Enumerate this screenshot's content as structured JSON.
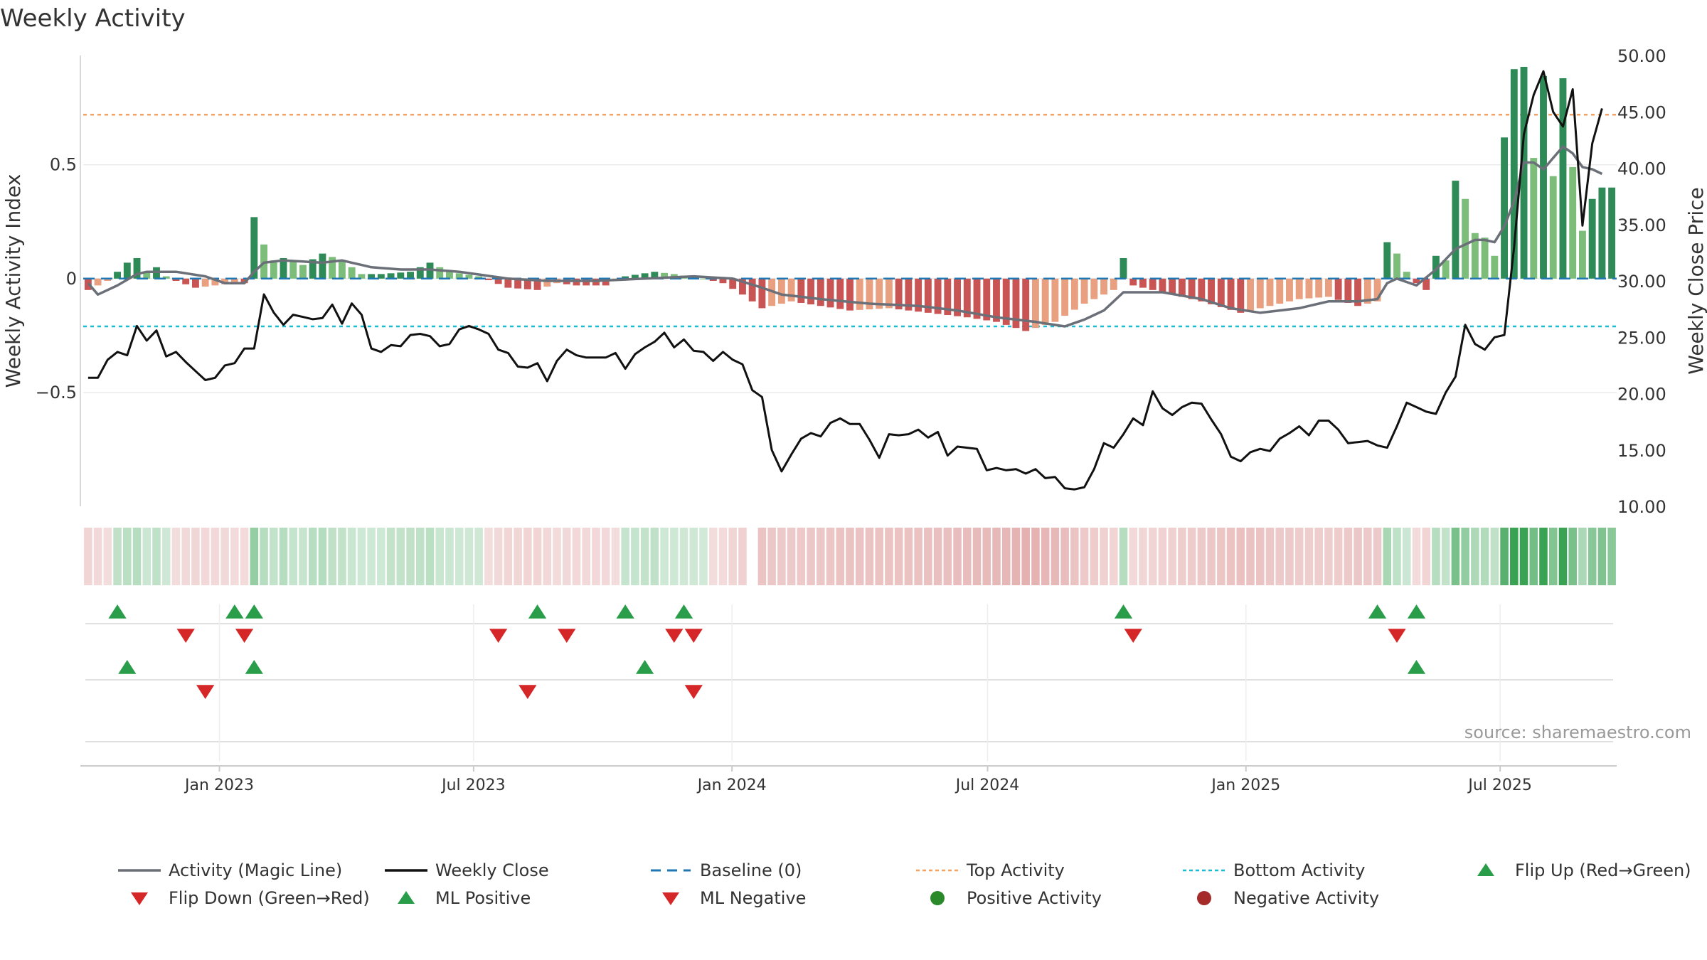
{
  "chart_data": {
    "type": "bar",
    "title": "Weekly Activity",
    "ylabel_left": "Weekly Activity Index",
    "ylabel_right": "Weekly Close Price",
    "ylim_left": [
      -1.0,
      0.98
    ],
    "ylim_right": [
      10.0,
      50.0
    ],
    "yticks_left": [
      0.5,
      0,
      -0.5
    ],
    "ytick_labels_left": [
      "0.5",
      "0",
      "−0.5"
    ],
    "yticks_right": [
      50,
      45,
      40,
      35,
      30,
      25,
      20,
      15,
      10
    ],
    "ytick_labels_right": [
      "50.00",
      "45.00",
      "40.00",
      "35.00",
      "30.00",
      "25.00",
      "20.00",
      "15.00",
      "10.00"
    ],
    "x_start": "2022-09-26",
    "x_end": "2025-09-22",
    "week_count": 157,
    "xticks": [
      {
        "date": "2023-01-01",
        "label": "Jan 2023"
      },
      {
        "date": "2023-07-01",
        "label": "Jul 2023"
      },
      {
        "date": "2024-01-01",
        "label": "Jan 2024"
      },
      {
        "date": "2024-07-01",
        "label": "Jul 2024"
      },
      {
        "date": "2025-01-01",
        "label": "Jan 2025"
      },
      {
        "date": "2025-07-01",
        "label": "Jul 2025"
      }
    ],
    "reference_lines": {
      "baseline": 0,
      "top_activity": 0.72,
      "bottom_activity": -0.21
    },
    "activity_keys": [
      {
        "w": 0,
        "v": -0.05
      },
      {
        "w": 2,
        "v": -0.01
      },
      {
        "w": 4,
        "v": 0.07
      },
      {
        "w": 5,
        "v": 0.09
      },
      {
        "w": 6,
        "v": 0.03
      },
      {
        "w": 7,
        "v": 0.05
      },
      {
        "w": 8,
        "v": 0.01
      },
      {
        "w": 9,
        "v": -0.01
      },
      {
        "w": 11,
        "v": -0.04
      },
      {
        "w": 13,
        "v": -0.03
      },
      {
        "w": 15,
        "v": -0.02
      },
      {
        "w": 16,
        "v": -0.02
      },
      {
        "w": 17,
        "v": 0.27
      },
      {
        "w": 18,
        "v": 0.15
      },
      {
        "w": 19,
        "v": 0.08
      },
      {
        "w": 20,
        "v": 0.09
      },
      {
        "w": 22,
        "v": 0.06
      },
      {
        "w": 24,
        "v": 0.11
      },
      {
        "w": 26,
        "v": 0.08
      },
      {
        "w": 28,
        "v": 0.02
      },
      {
        "w": 30,
        "v": 0.02
      },
      {
        "w": 33,
        "v": 0.03
      },
      {
        "w": 35,
        "v": 0.07
      },
      {
        "w": 37,
        "v": 0.03
      },
      {
        "w": 40,
        "v": 0.01
      },
      {
        "w": 43,
        "v": -0.04
      },
      {
        "w": 46,
        "v": -0.05
      },
      {
        "w": 48,
        "v": -0.02
      },
      {
        "w": 50,
        "v": -0.03
      },
      {
        "w": 53,
        "v": -0.03
      },
      {
        "w": 55,
        "v": 0.01
      },
      {
        "w": 58,
        "v": 0.03
      },
      {
        "w": 60,
        "v": 0.02
      },
      {
        "w": 63,
        "v": 0.0
      },
      {
        "w": 65,
        "v": -0.02
      },
      {
        "w": 67,
        "v": -0.07
      },
      {
        "w": 69,
        "v": -0.13
      },
      {
        "w": 72,
        "v": -0.1
      },
      {
        "w": 75,
        "v": -0.12
      },
      {
        "w": 78,
        "v": -0.14
      },
      {
        "w": 82,
        "v": -0.13
      },
      {
        "w": 86,
        "v": -0.15
      },
      {
        "w": 90,
        "v": -0.17
      },
      {
        "w": 93,
        "v": -0.19
      },
      {
        "w": 96,
        "v": -0.23
      },
      {
        "w": 99,
        "v": -0.19
      },
      {
        "w": 102,
        "v": -0.11
      },
      {
        "w": 105,
        "v": -0.05
      },
      {
        "w": 106,
        "v": 0.09
      },
      {
        "w": 107,
        "v": -0.03
      },
      {
        "w": 110,
        "v": -0.06
      },
      {
        "w": 114,
        "v": -0.1
      },
      {
        "w": 118,
        "v": -0.15
      },
      {
        "w": 121,
        "v": -0.12
      },
      {
        "w": 124,
        "v": -0.09
      },
      {
        "w": 127,
        "v": -0.08
      },
      {
        "w": 130,
        "v": -0.12
      },
      {
        "w": 132,
        "v": -0.1
      },
      {
        "w": 133,
        "v": 0.16
      },
      {
        "w": 134,
        "v": 0.11
      },
      {
        "w": 135,
        "v": 0.03
      },
      {
        "w": 136,
        "v": -0.02
      },
      {
        "w": 137,
        "v": -0.05
      },
      {
        "w": 138,
        "v": 0.1
      },
      {
        "w": 139,
        "v": 0.08
      },
      {
        "w": 140,
        "v": 0.43
      },
      {
        "w": 141,
        "v": 0.35
      },
      {
        "w": 142,
        "v": 0.2
      },
      {
        "w": 143,
        "v": 0.18
      },
      {
        "w": 144,
        "v": 0.1
      },
      {
        "w": 145,
        "v": 0.62
      },
      {
        "w": 146,
        "v": 0.92
      },
      {
        "w": 147,
        "v": 0.93
      },
      {
        "w": 148,
        "v": 0.53
      },
      {
        "w": 149,
        "v": 0.89
      },
      {
        "w": 150,
        "v": 0.45
      },
      {
        "w": 151,
        "v": 0.88
      },
      {
        "w": 152,
        "v": 0.49
      },
      {
        "w": 153,
        "v": 0.21
      },
      {
        "w": 154,
        "v": 0.35
      },
      {
        "w": 155,
        "v": 0.4
      },
      {
        "w": 156,
        "v": 0.4
      }
    ],
    "close_keys": [
      {
        "w": 0,
        "v": 21.4
      },
      {
        "w": 1,
        "v": 21.4
      },
      {
        "w": 2,
        "v": 23.0
      },
      {
        "w": 3,
        "v": 23.7
      },
      {
        "w": 4,
        "v": 23.4
      },
      {
        "w": 5,
        "v": 26.0
      },
      {
        "w": 6,
        "v": 24.7
      },
      {
        "w": 7,
        "v": 25.6
      },
      {
        "w": 8,
        "v": 23.3
      },
      {
        "w": 9,
        "v": 23.7
      },
      {
        "w": 10,
        "v": 22.8
      },
      {
        "w": 11,
        "v": 22.0
      },
      {
        "w": 12,
        "v": 21.2
      },
      {
        "w": 13,
        "v": 21.4
      },
      {
        "w": 14,
        "v": 22.5
      },
      {
        "w": 15,
        "v": 22.7
      },
      {
        "w": 16,
        "v": 24.0
      },
      {
        "w": 17,
        "v": 24.0
      },
      {
        "w": 18,
        "v": 28.8
      },
      {
        "w": 19,
        "v": 27.2
      },
      {
        "w": 20,
        "v": 26.1
      },
      {
        "w": 21,
        "v": 27.0
      },
      {
        "w": 22,
        "v": 26.8
      },
      {
        "w": 23,
        "v": 26.6
      },
      {
        "w": 24,
        "v": 26.7
      },
      {
        "w": 25,
        "v": 27.9
      },
      {
        "w": 26,
        "v": 26.2
      },
      {
        "w": 27,
        "v": 28.0
      },
      {
        "w": 28,
        "v": 27.0
      },
      {
        "w": 29,
        "v": 24.0
      },
      {
        "w": 30,
        "v": 23.7
      },
      {
        "w": 31,
        "v": 24.3
      },
      {
        "w": 32,
        "v": 24.2
      },
      {
        "w": 33,
        "v": 25.2
      },
      {
        "w": 34,
        "v": 25.3
      },
      {
        "w": 35,
        "v": 25.1
      },
      {
        "w": 36,
        "v": 24.2
      },
      {
        "w": 37,
        "v": 24.4
      },
      {
        "w": 38,
        "v": 25.7
      },
      {
        "w": 39,
        "v": 26.0
      },
      {
        "w": 40,
        "v": 25.7
      },
      {
        "w": 41,
        "v": 25.3
      },
      {
        "w": 42,
        "v": 23.9
      },
      {
        "w": 43,
        "v": 23.6
      },
      {
        "w": 44,
        "v": 22.4
      },
      {
        "w": 45,
        "v": 22.3
      },
      {
        "w": 46,
        "v": 22.7
      },
      {
        "w": 47,
        "v": 21.1
      },
      {
        "w": 48,
        "v": 22.9
      },
      {
        "w": 49,
        "v": 23.9
      },
      {
        "w": 50,
        "v": 23.4
      },
      {
        "w": 51,
        "v": 23.2
      },
      {
        "w": 52,
        "v": 23.2
      },
      {
        "w": 53,
        "v": 23.2
      },
      {
        "w": 54,
        "v": 23.6
      },
      {
        "w": 55,
        "v": 22.2
      },
      {
        "w": 56,
        "v": 23.5
      },
      {
        "w": 57,
        "v": 24.1
      },
      {
        "w": 58,
        "v": 24.6
      },
      {
        "w": 59,
        "v": 25.4
      },
      {
        "w": 60,
        "v": 24.1
      },
      {
        "w": 61,
        "v": 24.8
      },
      {
        "w": 62,
        "v": 23.8
      },
      {
        "w": 63,
        "v": 23.7
      },
      {
        "w": 64,
        "v": 22.9
      },
      {
        "w": 65,
        "v": 23.7
      },
      {
        "w": 66,
        "v": 23.0
      },
      {
        "w": 67,
        "v": 22.6
      },
      {
        "w": 68,
        "v": 20.3
      },
      {
        "w": 69,
        "v": 19.7
      },
      {
        "w": 70,
        "v": 15.0
      },
      {
        "w": 71,
        "v": 13.1
      },
      {
        "w": 72,
        "v": 14.6
      },
      {
        "w": 73,
        "v": 16.0
      },
      {
        "w": 74,
        "v": 16.5
      },
      {
        "w": 75,
        "v": 16.2
      },
      {
        "w": 76,
        "v": 17.4
      },
      {
        "w": 77,
        "v": 17.8
      },
      {
        "w": 78,
        "v": 17.3
      },
      {
        "w": 79,
        "v": 17.3
      },
      {
        "w": 80,
        "v": 15.9
      },
      {
        "w": 81,
        "v": 14.3
      },
      {
        "w": 82,
        "v": 16.4
      },
      {
        "w": 83,
        "v": 16.3
      },
      {
        "w": 84,
        "v": 16.4
      },
      {
        "w": 85,
        "v": 16.8
      },
      {
        "w": 86,
        "v": 16.1
      },
      {
        "w": 87,
        "v": 16.6
      },
      {
        "w": 88,
        "v": 14.5
      },
      {
        "w": 89,
        "v": 15.3
      },
      {
        "w": 90,
        "v": 15.2
      },
      {
        "w": 91,
        "v": 15.1
      },
      {
        "w": 92,
        "v": 13.2
      },
      {
        "w": 93,
        "v": 13.4
      },
      {
        "w": 94,
        "v": 13.2
      },
      {
        "w": 95,
        "v": 13.3
      },
      {
        "w": 96,
        "v": 12.9
      },
      {
        "w": 97,
        "v": 13.3
      },
      {
        "w": 98,
        "v": 12.5
      },
      {
        "w": 99,
        "v": 12.6
      },
      {
        "w": 100,
        "v": 11.6
      },
      {
        "w": 101,
        "v": 11.5
      },
      {
        "w": 102,
        "v": 11.7
      },
      {
        "w": 103,
        "v": 13.3
      },
      {
        "w": 104,
        "v": 15.6
      },
      {
        "w": 105,
        "v": 15.2
      },
      {
        "w": 106,
        "v": 16.4
      },
      {
        "w": 107,
        "v": 17.8
      },
      {
        "w": 108,
        "v": 17.2
      },
      {
        "w": 109,
        "v": 20.2
      },
      {
        "w": 110,
        "v": 18.7
      },
      {
        "w": 111,
        "v": 18.1
      },
      {
        "w": 112,
        "v": 18.8
      },
      {
        "w": 113,
        "v": 19.2
      },
      {
        "w": 114,
        "v": 19.1
      },
      {
        "w": 115,
        "v": 17.7
      },
      {
        "w": 116,
        "v": 16.4
      },
      {
        "w": 117,
        "v": 14.4
      },
      {
        "w": 118,
        "v": 14.0
      },
      {
        "w": 119,
        "v": 14.8
      },
      {
        "w": 120,
        "v": 15.1
      },
      {
        "w": 121,
        "v": 14.9
      },
      {
        "w": 122,
        "v": 16.0
      },
      {
        "w": 123,
        "v": 16.5
      },
      {
        "w": 124,
        "v": 17.1
      },
      {
        "w": 125,
        "v": 16.3
      },
      {
        "w": 126,
        "v": 17.6
      },
      {
        "w": 127,
        "v": 17.6
      },
      {
        "w": 128,
        "v": 16.8
      },
      {
        "w": 129,
        "v": 15.6
      },
      {
        "w": 130,
        "v": 15.7
      },
      {
        "w": 131,
        "v": 15.8
      },
      {
        "w": 132,
        "v": 15.4
      },
      {
        "w": 133,
        "v": 15.2
      },
      {
        "w": 134,
        "v": 17.1
      },
      {
        "w": 135,
        "v": 19.2
      },
      {
        "w": 136,
        "v": 18.8
      },
      {
        "w": 137,
        "v": 18.4
      },
      {
        "w": 138,
        "v": 18.2
      },
      {
        "w": 139,
        "v": 20.1
      },
      {
        "w": 140,
        "v": 21.5
      },
      {
        "w": 141,
        "v": 26.1
      },
      {
        "w": 142,
        "v": 24.4
      },
      {
        "w": 143,
        "v": 23.9
      },
      {
        "w": 144,
        "v": 25.0
      },
      {
        "w": 145,
        "v": 25.2
      },
      {
        "w": 146,
        "v": 33.0
      },
      {
        "w": 147,
        "v": 43.0
      },
      {
        "w": 148,
        "v": 46.5
      },
      {
        "w": 149,
        "v": 48.6
      },
      {
        "w": 150,
        "v": 45.0
      },
      {
        "w": 151,
        "v": 43.7
      },
      {
        "w": 152,
        "v": 47.0
      },
      {
        "w": 153,
        "v": 34.9
      },
      {
        "w": 154,
        "v": 42.2
      },
      {
        "w": 155,
        "v": 45.3
      }
    ],
    "magic_keys": [
      {
        "w": 0,
        "v": -0.02
      },
      {
        "w": 1,
        "v": -0.07
      },
      {
        "w": 3,
        "v": -0.03
      },
      {
        "w": 5,
        "v": 0.02
      },
      {
        "w": 6,
        "v": 0.03
      },
      {
        "w": 9,
        "v": 0.03
      },
      {
        "w": 12,
        "v": 0.01
      },
      {
        "w": 14,
        "v": -0.02
      },
      {
        "w": 16,
        "v": -0.02
      },
      {
        "w": 17,
        "v": 0.03
      },
      {
        "w": 18,
        "v": 0.07
      },
      {
        "w": 20,
        "v": 0.08
      },
      {
        "w": 24,
        "v": 0.07
      },
      {
        "w": 26,
        "v": 0.08
      },
      {
        "w": 29,
        "v": 0.05
      },
      {
        "w": 32,
        "v": 0.04
      },
      {
        "w": 35,
        "v": 0.04
      },
      {
        "w": 38,
        "v": 0.03
      },
      {
        "w": 43,
        "v": 0.0
      },
      {
        "w": 47,
        "v": -0.01
      },
      {
        "w": 52,
        "v": -0.01
      },
      {
        "w": 57,
        "v": 0.0
      },
      {
        "w": 62,
        "v": 0.01
      },
      {
        "w": 66,
        "v": 0.0
      },
      {
        "w": 69,
        "v": -0.04
      },
      {
        "w": 71,
        "v": -0.07
      },
      {
        "w": 75,
        "v": -0.09
      },
      {
        "w": 80,
        "v": -0.11
      },
      {
        "w": 85,
        "v": -0.12
      },
      {
        "w": 89,
        "v": -0.14
      },
      {
        "w": 93,
        "v": -0.17
      },
      {
        "w": 97,
        "v": -0.19
      },
      {
        "w": 100,
        "v": -0.21
      },
      {
        "w": 102,
        "v": -0.18
      },
      {
        "w": 104,
        "v": -0.14
      },
      {
        "w": 105,
        "v": -0.1
      },
      {
        "w": 106,
        "v": -0.06
      },
      {
        "w": 110,
        "v": -0.06
      },
      {
        "w": 114,
        "v": -0.09
      },
      {
        "w": 117,
        "v": -0.13
      },
      {
        "w": 120,
        "v": -0.15
      },
      {
        "w": 124,
        "v": -0.13
      },
      {
        "w": 127,
        "v": -0.1
      },
      {
        "w": 130,
        "v": -0.1
      },
      {
        "w": 132,
        "v": -0.09
      },
      {
        "w": 133,
        "v": -0.02
      },
      {
        "w": 134,
        "v": 0.0
      },
      {
        "w": 136,
        "v": -0.03
      },
      {
        "w": 138,
        "v": 0.04
      },
      {
        "w": 140,
        "v": 0.13
      },
      {
        "w": 142,
        "v": 0.17
      },
      {
        "w": 143,
        "v": 0.17
      },
      {
        "w": 144,
        "v": 0.16
      },
      {
        "w": 145,
        "v": 0.23
      },
      {
        "w": 146,
        "v": 0.34
      },
      {
        "w": 147,
        "v": 0.51
      },
      {
        "w": 148,
        "v": 0.51
      },
      {
        "w": 149,
        "v": 0.48
      },
      {
        "w": 150,
        "v": 0.53
      },
      {
        "w": 151,
        "v": 0.58
      },
      {
        "w": 152,
        "v": 0.55
      },
      {
        "w": 153,
        "v": 0.49
      },
      {
        "w": 154,
        "v": 0.48
      },
      {
        "w": 155,
        "v": 0.46
      }
    ],
    "timeline_gap_weeks": [
      68
    ],
    "flip_up_weeks": [
      3,
      15,
      17,
      46,
      55,
      61,
      106,
      132,
      136
    ],
    "flip_down_weeks": [
      10,
      16,
      42,
      49,
      60,
      62,
      107,
      134
    ],
    "ml_positive_weeks": [
      4,
      17,
      57,
      136
    ],
    "ml_negative_weeks": [
      12,
      45,
      62
    ],
    "marker_row_bands": [
      {
        "from": 0,
        "to": 68
      },
      {
        "from": 106,
        "to": 107
      },
      {
        "from": 132,
        "to": 136
      }
    ],
    "source_text": "source: sharemaestro.com",
    "legend": [
      {
        "key": "magic",
        "label": "Activity (Magic Line)",
        "symbol": "line",
        "color": "#6b6f78"
      },
      {
        "key": "close",
        "label": "Weekly Close",
        "symbol": "line",
        "color": "#111111"
      },
      {
        "key": "baseline",
        "label": "Baseline (0)",
        "symbol": "dash",
        "color": "#1f77b4"
      },
      {
        "key": "top",
        "label": "Top Activity",
        "symbol": "dot",
        "color": "#f4a261"
      },
      {
        "key": "bottom",
        "label": "Bottom Activity",
        "symbol": "dot",
        "color": "#17becf"
      },
      {
        "key": "flip-up",
        "label": "Flip Up (Red→Green)",
        "symbol": "triangle-up",
        "color": "#2a9d4a"
      },
      {
        "key": "flip-down",
        "label": "Flip Down (Green→Red)",
        "symbol": "triangle-down",
        "color": "#d62728"
      },
      {
        "key": "ml-positive",
        "label": "ML Positive",
        "symbol": "triangle-up",
        "color": "#2a9d4a"
      },
      {
        "key": "ml-negative",
        "label": "ML Negative",
        "symbol": "triangle-down",
        "color": "#d62728"
      },
      {
        "key": "positive-activity",
        "label": "Positive Activity",
        "symbol": "circle",
        "color": "#2a8a2a"
      },
      {
        "key": "negative-activity",
        "label": "Negative Activity",
        "symbol": "circle",
        "color": "#a52a2a"
      }
    ],
    "colors": {
      "pos_strong": "#2e8b57",
      "pos_light": "#7cbd7a",
      "neg_strong": "#c95454",
      "neg_light": "#e8a080",
      "magic_line": "#6b6f78",
      "close_line": "#111111",
      "baseline": "#1f77b4",
      "top_line": "#f4a261",
      "bottom_line": "#17becf",
      "marker_up": "#2a9d4a",
      "marker_down": "#d62728",
      "axis": "#cccccc",
      "grid": "#ebebeb",
      "text": "#333333",
      "source": "#999999"
    }
  }
}
